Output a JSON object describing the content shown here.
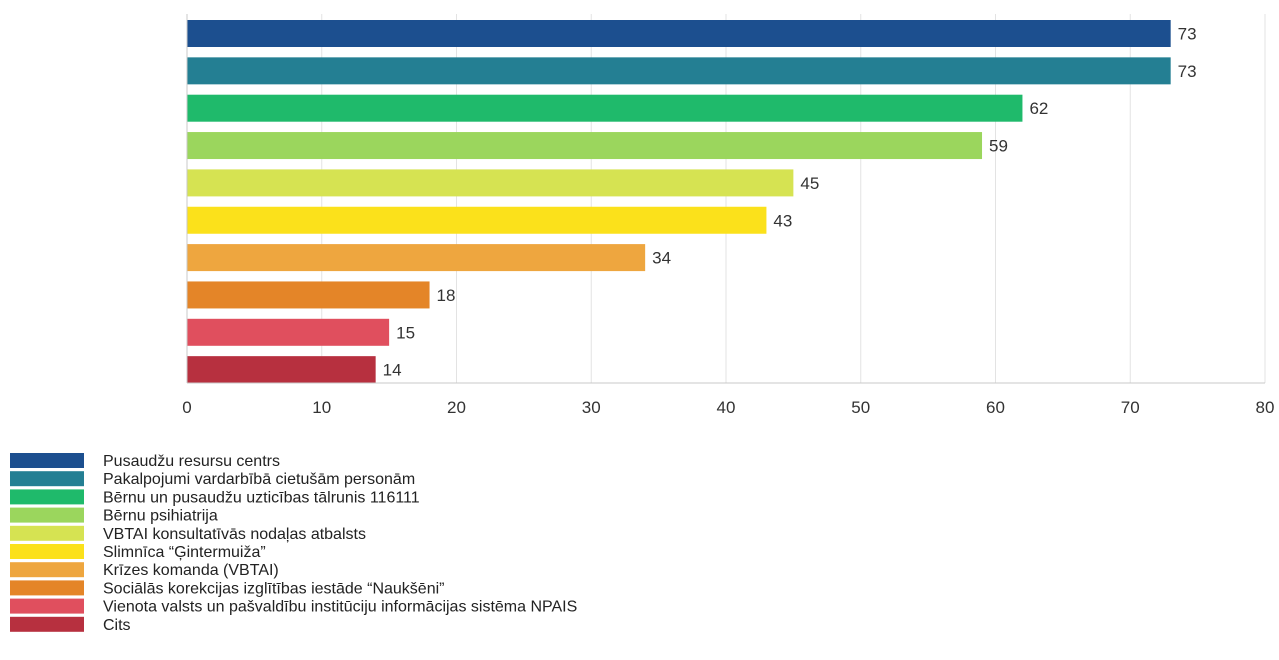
{
  "chart_data": {
    "type": "bar",
    "orientation": "horizontal",
    "title": "",
    "xlabel": "",
    "ylabel": "",
    "xlim": [
      0,
      80
    ],
    "xticks": [
      0,
      10,
      20,
      30,
      40,
      50,
      60,
      70,
      80
    ],
    "grid": true,
    "legend_position": "bottom-left",
    "categories": [
      "Pusaudžu resursu centrs",
      "Pakalpojumi vardarbībā cietušām personām",
      "Bērnu un pusaudžu uzticības tālrunis 116111",
      "Bērnu psihiatrija",
      "VBTAI konsultatīvās nodaļas atbalsts",
      "Slimnīca “Ģintermuiža”",
      "Krīzes komanda (VBTAI)",
      "Sociālās korekcijas izglītības iestāde “Naukšēni”",
      "Vienota valsts un pašvaldību institūciju informācijas sistēma NPAIS",
      "Cits"
    ],
    "values": [
      73,
      73,
      62,
      59,
      45,
      43,
      34,
      18,
      15,
      14
    ],
    "colors": [
      "#1c4f8f",
      "#247f93",
      "#1fba6b",
      "#9bd65d",
      "#d6e352",
      "#fbe11b",
      "#eea63f",
      "#e48528",
      "#e04f5e",
      "#b7303f"
    ]
  }
}
